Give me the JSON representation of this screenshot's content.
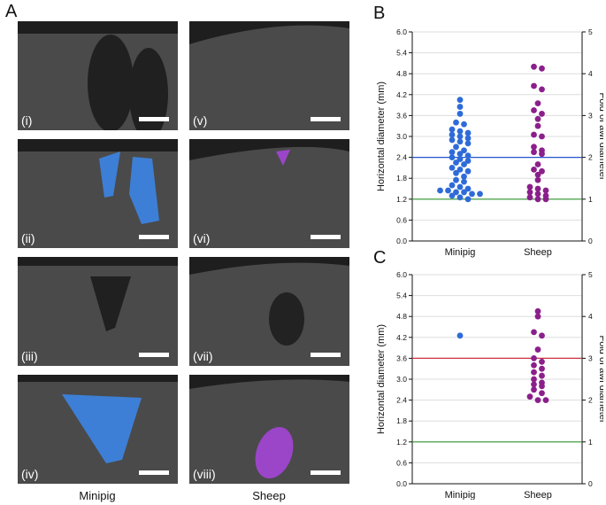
{
  "panel_labels": {
    "A": "A",
    "B": "B",
    "C": "C"
  },
  "panel_a": {
    "roman_labels": [
      "(i)",
      "(ii)",
      "(iii)",
      "(iv)",
      "(v)",
      "(vi)",
      "(vii)",
      "(viii)"
    ],
    "column_labels": [
      "Minipig",
      "Sheep"
    ]
  },
  "colors": {
    "minipig": "#2e6bd8",
    "sheep": "#8b1f8b",
    "blue_line": "#2255cc",
    "red_line": "#cc3344",
    "green_line": "#339933"
  },
  "chart_data": [
    {
      "type": "scatter",
      "panel": "B",
      "ylabel": "Horizontal diameter (mm)",
      "ylabel_right": "Fold of awl diameter",
      "categories": [
        "Minipig",
        "Sheep"
      ],
      "ylim": [
        0,
        6.0
      ],
      "yticks": [
        "0.0",
        "0.6",
        "1.2",
        "1.8",
        "2.4",
        "3.0",
        "3.6",
        "4.2",
        "4.8",
        "5.4",
        "6.0"
      ],
      "ylim_right": [
        0,
        5
      ],
      "yticks_right": [
        "0",
        "1",
        "2",
        "3",
        "4",
        "5"
      ],
      "reference_lines": [
        {
          "y": 2.4,
          "color": "blue"
        },
        {
          "y": 1.2,
          "color": "green"
        }
      ],
      "series": [
        {
          "name": "Minipig",
          "values": [
            4.05,
            3.85,
            3.65,
            3.4,
            3.35,
            3.2,
            3.15,
            3.1,
            3.05,
            3.0,
            2.95,
            2.9,
            2.85,
            2.8,
            2.7,
            2.6,
            2.55,
            2.5,
            2.45,
            2.4,
            2.35,
            2.3,
            2.25,
            2.2,
            2.1,
            2.05,
            2.0,
            1.95,
            1.85,
            1.75,
            1.7,
            1.6,
            1.55,
            1.5,
            1.45,
            1.45,
            1.4,
            1.4,
            1.35,
            1.35,
            1.3,
            1.25,
            1.2
          ]
        },
        {
          "name": "Sheep",
          "values": [
            5.0,
            4.95,
            4.45,
            4.35,
            3.95,
            3.75,
            3.65,
            3.5,
            3.3,
            3.05,
            3.0,
            2.7,
            2.6,
            2.55,
            2.5,
            2.2,
            2.05,
            2.0,
            1.9,
            1.75,
            1.55,
            1.5,
            1.45,
            1.4,
            1.35,
            1.3,
            1.25,
            1.2,
            1.2
          ]
        }
      ]
    },
    {
      "type": "scatter",
      "panel": "C",
      "ylabel": "Horizontal diameter (mm)",
      "ylabel_right": "Fold of awl diameter",
      "categories": [
        "Minipig",
        "Sheep"
      ],
      "ylim": [
        0,
        6.0
      ],
      "yticks": [
        "0.0",
        "0.6",
        "1.2",
        "1.8",
        "2.4",
        "3.0",
        "3.6",
        "4.2",
        "4.8",
        "5.4",
        "6.0"
      ],
      "ylim_right": [
        0,
        5
      ],
      "yticks_right": [
        "0",
        "1",
        "2",
        "3",
        "4",
        "5"
      ],
      "reference_lines": [
        {
          "y": 3.6,
          "color": "red"
        },
        {
          "y": 1.2,
          "color": "green"
        }
      ],
      "series": [
        {
          "name": "Minipig",
          "values": [
            4.25
          ]
        },
        {
          "name": "Sheep",
          "values": [
            4.95,
            4.8,
            4.35,
            4.25,
            3.85,
            3.6,
            3.5,
            3.4,
            3.3,
            3.2,
            3.1,
            3.0,
            2.9,
            2.85,
            2.8,
            2.7,
            2.6,
            2.5,
            2.4,
            2.4
          ]
        }
      ]
    }
  ]
}
